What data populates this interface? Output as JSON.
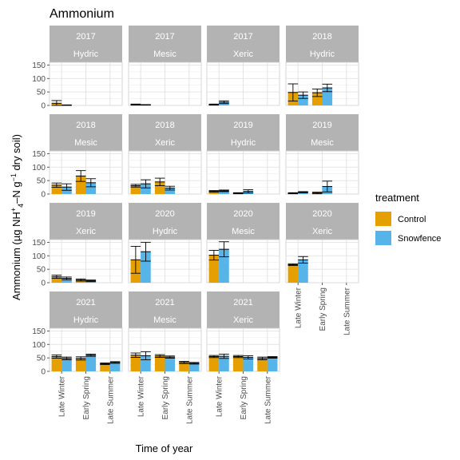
{
  "chart_data": {
    "type": "bar",
    "title": "Ammonium",
    "xlabel": "Time of year",
    "ylabel": "Ammonium (µg NH4+–N g−1 dry soil)",
    "ylabel_parts": {
      "prefix": "Ammonium (µg NH",
      "sup1": "+",
      "sub1": "4",
      "mid": "–N g",
      "sup2": "−1",
      "suffix": " dry soil)"
    },
    "categories": [
      "Late Winter",
      "Early Spring",
      "Late Summer"
    ],
    "ylim": [
      0,
      160
    ],
    "yticks": [
      0,
      50,
      100,
      150
    ],
    "legend": {
      "title": "treatment",
      "position": "right",
      "entries": [
        {
          "name": "Control",
          "color": "#E69F00"
        },
        {
          "name": "Snowfence",
          "color": "#56B4E9"
        }
      ]
    },
    "facets": [
      {
        "year": "2017",
        "site": "Hydric",
        "control": [
          8,
          null,
          null
        ],
        "control_err": [
          10,
          null,
          null
        ],
        "snowfence": [
          1,
          null,
          null
        ],
        "snowfence_err": [
          1,
          null,
          null
        ]
      },
      {
        "year": "2017",
        "site": "Mesic",
        "control": [
          3,
          null,
          null
        ],
        "control_err": [
          2,
          null,
          null
        ],
        "snowfence": [
          2,
          null,
          null
        ],
        "snowfence_err": [
          1,
          null,
          null
        ]
      },
      {
        "year": "2017",
        "site": "Xeric",
        "control": [
          3,
          null,
          null
        ],
        "control_err": [
          2,
          null,
          null
        ],
        "snowfence": [
          12,
          null,
          null
        ],
        "snowfence_err": [
          5,
          null,
          null
        ]
      },
      {
        "year": "2018",
        "site": "Hydric",
        "control": [
          48,
          47,
          null
        ],
        "control_err": [
          32,
          14,
          null
        ],
        "snowfence": [
          38,
          65,
          null
        ],
        "snowfence_err": [
          12,
          14,
          null
        ]
      },
      {
        "year": "2018",
        "site": "Mesic",
        "control": [
          33,
          67,
          null
        ],
        "control_err": [
          8,
          20,
          null
        ],
        "snowfence": [
          26,
          42,
          null
        ],
        "snowfence_err": [
          12,
          15,
          null
        ]
      },
      {
        "year": "2018",
        "site": "Xeric",
        "control": [
          31,
          45,
          null
        ],
        "control_err": [
          5,
          14,
          null
        ],
        "snowfence": [
          38,
          22,
          null
        ],
        "snowfence_err": [
          15,
          7,
          null
        ]
      },
      {
        "year": "2019",
        "site": "Hydric",
        "control": [
          10,
          3,
          null
        ],
        "control_err": [
          3,
          2,
          null
        ],
        "snowfence": [
          12,
          10,
          null
        ],
        "snowfence_err": [
          3,
          6,
          null
        ]
      },
      {
        "year": "2019",
        "site": "Mesic",
        "control": [
          3,
          4,
          null
        ],
        "control_err": [
          2,
          3,
          null
        ],
        "snowfence": [
          7,
          28,
          null
        ],
        "snowfence_err": [
          2,
          20,
          null
        ]
      },
      {
        "year": "2019",
        "site": "Xeric",
        "control": [
          22,
          10,
          null
        ],
        "control_err": [
          6,
          4,
          null
        ],
        "snowfence": [
          16,
          7,
          null
        ],
        "snowfence_err": [
          5,
          3,
          null
        ]
      },
      {
        "year": "2020",
        "site": "Hydric",
        "control": [
          85,
          null,
          null
        ],
        "control_err": [
          50,
          null,
          null
        ],
        "snowfence": [
          115,
          null,
          null
        ],
        "snowfence_err": [
          35,
          null,
          null
        ]
      },
      {
        "year": "2020",
        "site": "Mesic",
        "control": [
          102,
          null,
          null
        ],
        "control_err": [
          18,
          null,
          null
        ],
        "snowfence": [
          124,
          null,
          null
        ],
        "snowfence_err": [
          28,
          null,
          null
        ]
      },
      {
        "year": "2020",
        "site": "Xeric",
        "control": [
          67,
          null,
          null
        ],
        "control_err": [
          3,
          null,
          null
        ],
        "snowfence": [
          85,
          null,
          null
        ],
        "snowfence_err": [
          12,
          null,
          null
        ]
      },
      {
        "year": "2021",
        "site": "Hydric",
        "control": [
          55,
          48,
          28
        ],
        "control_err": [
          6,
          6,
          3
        ],
        "snowfence": [
          48,
          60,
          33
        ],
        "snowfence_err": [
          5,
          4,
          3
        ]
      },
      {
        "year": "2021",
        "site": "Mesic",
        "control": [
          60,
          57,
          33
        ],
        "control_err": [
          8,
          5,
          4
        ],
        "snowfence": [
          58,
          53,
          30
        ],
        "snowfence_err": [
          15,
          4,
          3
        ]
      },
      {
        "year": "2021",
        "site": "Xeric",
        "control": [
          55,
          55,
          48
        ],
        "control_err": [
          4,
          4,
          5
        ],
        "snowfence": [
          56,
          52,
          52
        ],
        "snowfence_err": [
          8,
          6,
          3
        ]
      }
    ]
  }
}
